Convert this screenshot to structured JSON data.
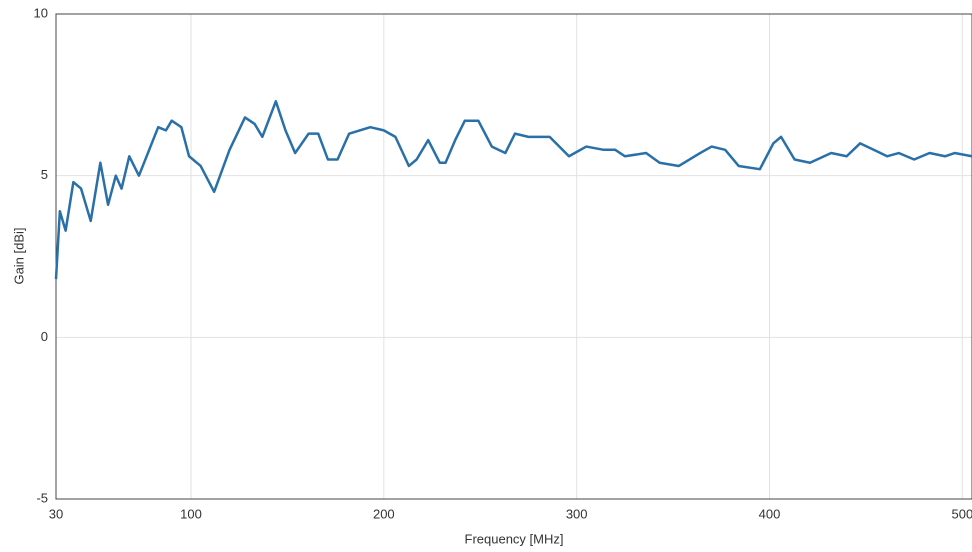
{
  "chart_data": {
    "type": "line",
    "xlabel": "Frequency [MHz]",
    "ylabel": "Gain [dBi]",
    "x": [
      30,
      32,
      35,
      39,
      43,
      48,
      53,
      57,
      61,
      64,
      68,
      73,
      79,
      83,
      87,
      90,
      95,
      99,
      105,
      112,
      120,
      128,
      133,
      137,
      144,
      149,
      154,
      161,
      166,
      171,
      176,
      182,
      193,
      200,
      206,
      213,
      217,
      223,
      229,
      232,
      237,
      242,
      249,
      256,
      263,
      268,
      275,
      286,
      296,
      305,
      314,
      320,
      325,
      336,
      343,
      353,
      364,
      370,
      377,
      384,
      395,
      402,
      406,
      413,
      421,
      432,
      440,
      447,
      454,
      461,
      467,
      475,
      483,
      491,
      496,
      505
    ],
    "series": [
      {
        "name": "Gain",
        "color": "#2a70a8",
        "values": [
          1.8,
          3.9,
          3.3,
          4.8,
          4.6,
          3.6,
          5.4,
          4.1,
          5.0,
          4.6,
          5.6,
          5.0,
          5.9,
          6.5,
          6.4,
          6.7,
          6.5,
          5.6,
          5.3,
          4.5,
          5.8,
          6.8,
          6.6,
          6.2,
          7.3,
          6.4,
          5.7,
          6.3,
          6.3,
          5.5,
          5.5,
          6.3,
          6.5,
          6.4,
          6.2,
          5.3,
          5.5,
          6.1,
          5.4,
          5.4,
          6.1,
          6.7,
          6.7,
          5.9,
          5.7,
          6.3,
          6.2,
          6.2,
          5.6,
          5.9,
          5.8,
          5.8,
          5.6,
          5.7,
          5.4,
          5.3,
          5.7,
          5.9,
          5.8,
          5.3,
          5.2,
          6.0,
          6.2,
          5.5,
          5.4,
          5.7,
          5.6,
          6.0,
          5.8,
          5.6,
          5.7,
          5.5,
          5.7,
          5.6,
          5.7,
          5.6
        ]
      }
    ],
    "xlim": [
      30,
      505
    ],
    "xticks": [
      30,
      100,
      200,
      300,
      400,
      500
    ],
    "ylim": [
      -5,
      10
    ],
    "yticks": [
      -5,
      0,
      5,
      10
    ],
    "grid": true
  }
}
